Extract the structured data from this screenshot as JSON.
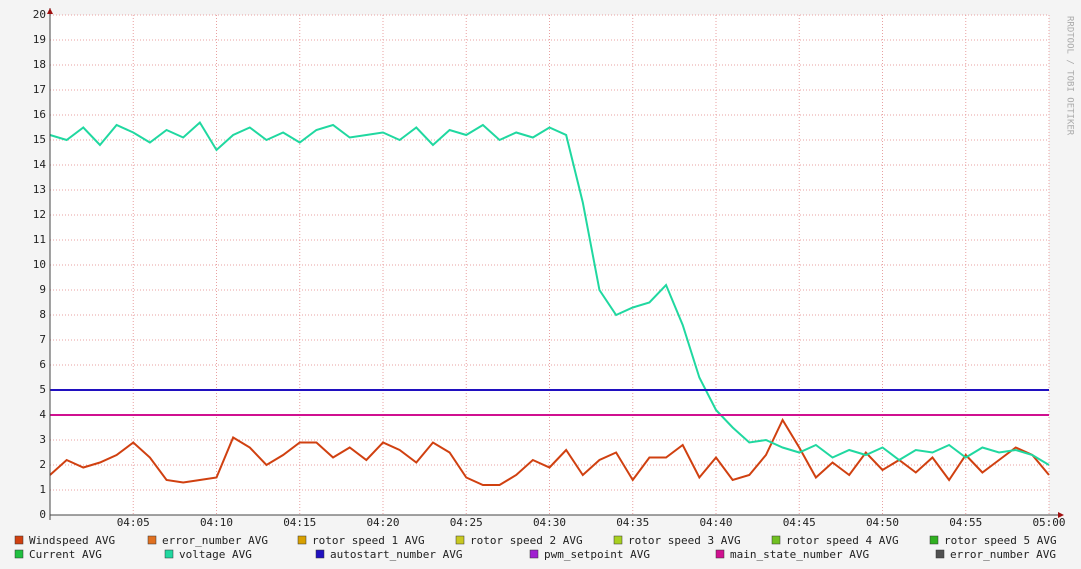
{
  "chart_data": {
    "type": "line",
    "watermark": "RRDTOOL / TOBI OETIKER",
    "x": [
      "04:00",
      "04:01",
      "04:02",
      "04:03",
      "04:04",
      "04:05",
      "04:06",
      "04:07",
      "04:08",
      "04:09",
      "04:10",
      "04:11",
      "04:12",
      "04:13",
      "04:14",
      "04:15",
      "04:16",
      "04:17",
      "04:18",
      "04:19",
      "04:20",
      "04:21",
      "04:22",
      "04:23",
      "04:24",
      "04:25",
      "04:26",
      "04:27",
      "04:28",
      "04:29",
      "04:30",
      "04:31",
      "04:32",
      "04:33",
      "04:34",
      "04:35",
      "04:36",
      "04:37",
      "04:38",
      "04:39",
      "04:40",
      "04:41",
      "04:42",
      "04:43",
      "04:44",
      "04:45",
      "04:46",
      "04:47",
      "04:48",
      "04:49",
      "04:50",
      "04:51",
      "04:52",
      "04:53",
      "04:54",
      "04:55",
      "04:56",
      "04:57",
      "04:58",
      "04:59",
      "05:00"
    ],
    "xlim": [
      "04:00",
      "05:00"
    ],
    "xticks": [
      "04:05",
      "04:10",
      "04:15",
      "04:20",
      "04:25",
      "04:30",
      "04:35",
      "04:40",
      "04:45",
      "04:50",
      "04:55",
      "05:00"
    ],
    "ylim": [
      0,
      20
    ],
    "yticks": [
      0,
      1,
      2,
      3,
      4,
      5,
      6,
      7,
      8,
      9,
      10,
      11,
      12,
      13,
      14,
      15,
      16,
      17,
      18,
      19,
      20
    ],
    "grid": true,
    "series": [
      {
        "name": "Windspeed AVG",
        "color": "#d04010",
        "values": [
          1.6,
          2.2,
          1.9,
          2.1,
          2.4,
          2.9,
          2.3,
          1.4,
          1.3,
          1.4,
          1.5,
          3.1,
          2.7,
          2.0,
          2.4,
          2.9,
          2.9,
          2.3,
          2.7,
          2.2,
          2.9,
          2.6,
          2.1,
          2.9,
          2.5,
          1.5,
          1.2,
          1.2,
          1.6,
          2.2,
          1.9,
          2.6,
          1.6,
          2.2,
          2.5,
          1.4,
          2.3,
          2.3,
          2.8,
          1.5,
          2.3,
          1.4,
          1.6,
          2.4,
          3.8,
          2.7,
          1.5,
          2.1,
          1.6,
          2.5,
          1.8,
          2.2,
          1.7,
          2.3,
          1.4,
          2.4,
          1.7,
          2.2,
          2.7,
          2.4,
          1.6
        ]
      },
      {
        "name": "error_number AVG",
        "color": "#e07020"
      },
      {
        "name": "rotor speed 1 AVG",
        "color": "#d8a000"
      },
      {
        "name": "rotor speed 2 AVG",
        "color": "#c8c820"
      },
      {
        "name": "rotor speed 3 AVG",
        "color": "#a8d020"
      },
      {
        "name": "rotor speed 4 AVG",
        "color": "#70c020"
      },
      {
        "name": "rotor speed 5 AVG",
        "color": "#30b020"
      },
      {
        "name": "Current AVG",
        "color": "#20c040"
      },
      {
        "name": "voltage AVG",
        "color": "#20d8a0",
        "values": [
          15.2,
          15.0,
          15.5,
          14.8,
          15.6,
          15.3,
          14.9,
          15.4,
          15.1,
          15.7,
          14.6,
          15.2,
          15.5,
          15.0,
          15.3,
          14.9,
          15.4,
          15.6,
          15.1,
          15.2,
          15.3,
          15.0,
          15.5,
          14.8,
          15.4,
          15.2,
          15.6,
          15.0,
          15.3,
          15.1,
          15.5,
          15.2,
          12.5,
          9.0,
          8.0,
          8.3,
          8.5,
          9.2,
          7.6,
          5.5,
          4.2,
          3.5,
          2.9,
          3.0,
          2.7,
          2.5,
          2.8,
          2.3,
          2.6,
          2.4,
          2.7,
          2.2,
          2.6,
          2.5,
          2.8,
          2.3,
          2.7,
          2.5,
          2.6,
          2.4,
          2.0
        ]
      },
      {
        "name": "autostart_number AVG",
        "color": "#2010c0",
        "values": [
          5,
          5,
          5,
          5,
          5,
          5,
          5,
          5,
          5,
          5,
          5,
          5,
          5,
          5,
          5,
          5,
          5,
          5,
          5,
          5,
          5,
          5,
          5,
          5,
          5,
          5,
          5,
          5,
          5,
          5,
          5,
          5,
          5,
          5,
          5,
          5,
          5,
          5,
          5,
          5,
          5,
          5,
          5,
          5,
          5,
          5,
          5,
          5,
          5,
          5,
          5,
          5,
          5,
          5,
          5,
          5,
          5,
          5,
          5,
          5,
          5
        ]
      },
      {
        "name": "pwm_setpoint AVG",
        "color": "#a020d0"
      },
      {
        "name": "main_state_number AVG",
        "color": "#d01090",
        "values": [
          4,
          4,
          4,
          4,
          4,
          4,
          4,
          4,
          4,
          4,
          4,
          4,
          4,
          4,
          4,
          4,
          4,
          4,
          4,
          4,
          4,
          4,
          4,
          4,
          4,
          4,
          4,
          4,
          4,
          4,
          4,
          4,
          4,
          4,
          4,
          4,
          4,
          4,
          4,
          4,
          4,
          4,
          4,
          4,
          4,
          4,
          4,
          4,
          4,
          4,
          4,
          4,
          4,
          4,
          4,
          4,
          4,
          4,
          4,
          4,
          4
        ]
      },
      {
        "name": "error_number AVG",
        "color": "#505050"
      }
    ]
  }
}
